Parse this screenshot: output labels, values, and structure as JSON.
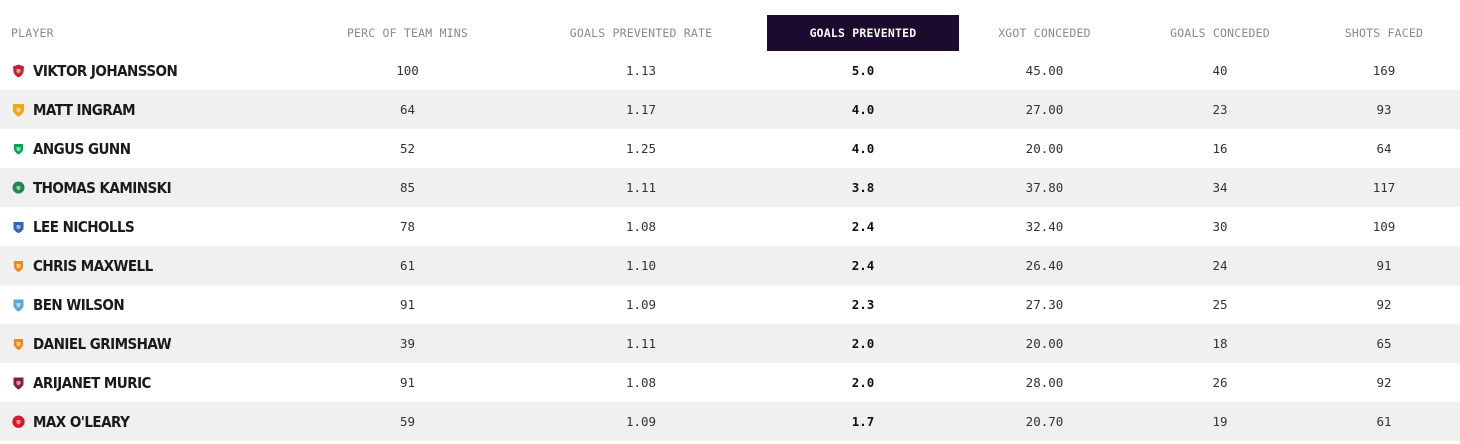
{
  "headers": {
    "player": "PLAYER",
    "perc_team_mins": "PERC OF TEAM MINS",
    "goals_prevented_rate": "GOALS PREVENTED RATE",
    "goals_prevented": "GOALS PREVENTED",
    "xgot_conceded": "XGOT CONCEDED",
    "goals_conceded": "GOALS CONCEDED",
    "shots_faced": "SHOTS FACED"
  },
  "sorted_column": "goals_prevented",
  "colors": {
    "active_header_bg": "#1c0b2e",
    "active_header_text": "#ffffff",
    "alt_row_bg": "#f0f0f0"
  },
  "rows": [
    {
      "name": "VIKTOR JOHANSSON",
      "crest": "rotherham-crest-icon",
      "crest_color": "#c8202f",
      "perc": "100",
      "gp_rate": "1.13",
      "gp": "5.0",
      "xgot": "45.00",
      "gc": "40",
      "shots": "169"
    },
    {
      "name": "MATT INGRAM",
      "crest": "hull-crest-icon",
      "crest_color": "#f5a414",
      "perc": "64",
      "gp_rate": "1.17",
      "gp": "4.0",
      "xgot": "27.00",
      "gc": "23",
      "shots": "93"
    },
    {
      "name": "ANGUS GUNN",
      "crest": "norwich-crest-icon",
      "crest_color": "#00a650",
      "perc": "52",
      "gp_rate": "1.25",
      "gp": "4.0",
      "xgot": "20.00",
      "gc": "16",
      "shots": "64"
    },
    {
      "name": "THOMAS KAMINSKI",
      "crest": "blackburn-crest-icon",
      "crest_color": "#1c8a4a",
      "perc": "85",
      "gp_rate": "1.11",
      "gp": "3.8",
      "xgot": "37.80",
      "gc": "34",
      "shots": "117"
    },
    {
      "name": "LEE NICHOLLS",
      "crest": "huddersfield-crest-icon",
      "crest_color": "#2c66b6",
      "perc": "78",
      "gp_rate": "1.08",
      "gp": "2.4",
      "xgot": "32.40",
      "gc": "30",
      "shots": "109"
    },
    {
      "name": "CHRIS MAXWELL",
      "crest": "blackpool-crest-icon",
      "crest_color": "#f68712",
      "perc": "61",
      "gp_rate": "1.10",
      "gp": "2.4",
      "xgot": "26.40",
      "gc": "24",
      "shots": "91"
    },
    {
      "name": "BEN WILSON",
      "crest": "coventry-crest-icon",
      "crest_color": "#5ba6d8",
      "perc": "91",
      "gp_rate": "1.09",
      "gp": "2.3",
      "xgot": "27.30",
      "gc": "25",
      "shots": "92"
    },
    {
      "name": "DANIEL GRIMSHAW",
      "crest": "blackpool-crest-icon",
      "crest_color": "#f68712",
      "perc": "39",
      "gp_rate": "1.11",
      "gp": "2.0",
      "xgot": "20.00",
      "gc": "18",
      "shots": "65"
    },
    {
      "name": "ARIJANET MURIC",
      "crest": "burnley-crest-icon",
      "crest_color": "#8a1c3c",
      "perc": "91",
      "gp_rate": "1.08",
      "gp": "2.0",
      "xgot": "28.00",
      "gc": "26",
      "shots": "92"
    },
    {
      "name": "MAX O'LEARY",
      "crest": "bristol-city-crest-icon",
      "crest_color": "#d71a28",
      "perc": "59",
      "gp_rate": "1.09",
      "gp": "1.7",
      "xgot": "20.70",
      "gc": "19",
      "shots": "61"
    }
  ]
}
